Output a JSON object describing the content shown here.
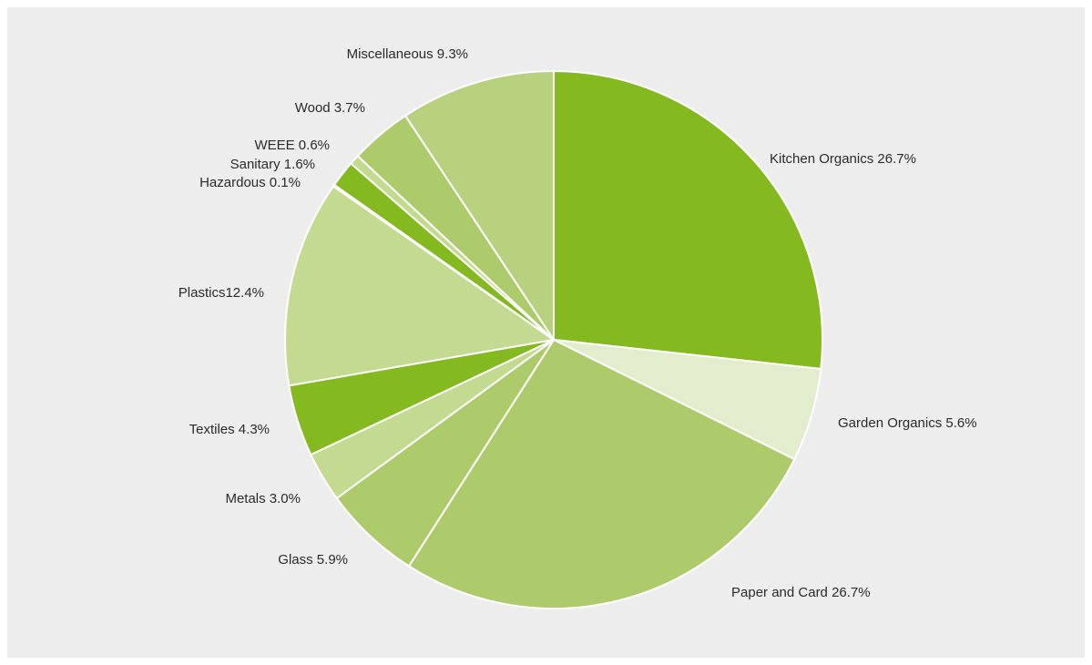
{
  "chart_data": {
    "type": "pie",
    "title": "",
    "start_angle_deg": 0,
    "direction": "clockwise",
    "slices": [
      {
        "name": "Kitchen Organics",
        "value": 26.7,
        "label": "Kitchen Organics 26.7%",
        "color": "#84b91f"
      },
      {
        "name": "Garden Organics",
        "value": 5.6,
        "label": "Garden Organics 5.6%",
        "color": "#e1edcc"
      },
      {
        "name": "Paper and Card",
        "value": 26.7,
        "label": "Paper and Card 26.7%",
        "color": "#aecb6c"
      },
      {
        "name": "Glass",
        "value": 5.9,
        "label": "Glass 5.9%",
        "color": "#aecb6c"
      },
      {
        "name": "Metals",
        "value": 3.0,
        "label": "Metals 3.0%",
        "color": "#c3da91"
      },
      {
        "name": "Textiles",
        "value": 4.3,
        "label": "Textiles 4.3%",
        "color": "#84b91f"
      },
      {
        "name": "Plastics",
        "value": 12.4,
        "label": "Plastics12.4%",
        "color": "#c3da91"
      },
      {
        "name": "Hazardous",
        "value": 0.1,
        "label": "Hazardous 0.1%",
        "color": "#aecb6c"
      },
      {
        "name": "Sanitary",
        "value": 1.6,
        "label": "Sanitary 1.6%",
        "color": "#84b91f"
      },
      {
        "name": "WEEE",
        "value": 0.6,
        "label": "WEEE 0.6%",
        "color": "#c3da91"
      },
      {
        "name": "Wood",
        "value": 3.7,
        "label": "Wood 3.7%",
        "color": "#aecb6c"
      },
      {
        "name": "Miscellaneous",
        "value": 9.3,
        "label": "Miscellaneous 9.3%",
        "color": "#b8d17f"
      }
    ]
  }
}
